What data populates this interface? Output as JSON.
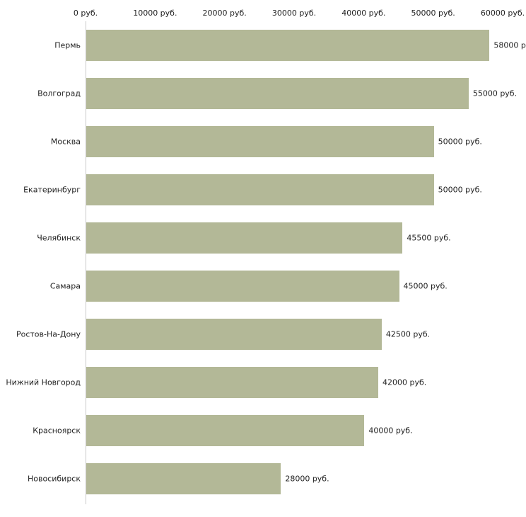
{
  "chart_data": {
    "type": "bar",
    "orientation": "horizontal",
    "title": "",
    "xlabel": "",
    "ylabel": "",
    "categories": [
      "Пермь",
      "Волгоград",
      "Москва",
      "Екатеринбург",
      "Челябинск",
      "Самара",
      "Ростов-На-Дону",
      "Нижний Новгород",
      "Красноярск",
      "Новосибирск"
    ],
    "values": [
      58000,
      55000,
      50000,
      50000,
      45500,
      45000,
      42500,
      42000,
      40000,
      28000
    ],
    "value_labels": [
      "58000 р",
      "55000 руб.",
      "50000 руб.",
      "50000 руб.",
      "45500 руб.",
      "45000 руб.",
      "42500 руб.",
      "42000 руб.",
      "40000 руб.",
      "28000 руб."
    ],
    "x_ticks": [
      0,
      10000,
      20000,
      30000,
      40000,
      50000,
      60000
    ],
    "x_tick_labels": [
      "0 руб.",
      "10000 руб.",
      "20000 руб.",
      "30000 руб.",
      "40000 руб.",
      "50000 руб.",
      "60000 руб."
    ],
    "xlim": [
      0,
      60000
    ],
    "bar_color": "#b3b897",
    "axis_line_color": "#c9c9c9",
    "grid": false,
    "legend": false
  }
}
